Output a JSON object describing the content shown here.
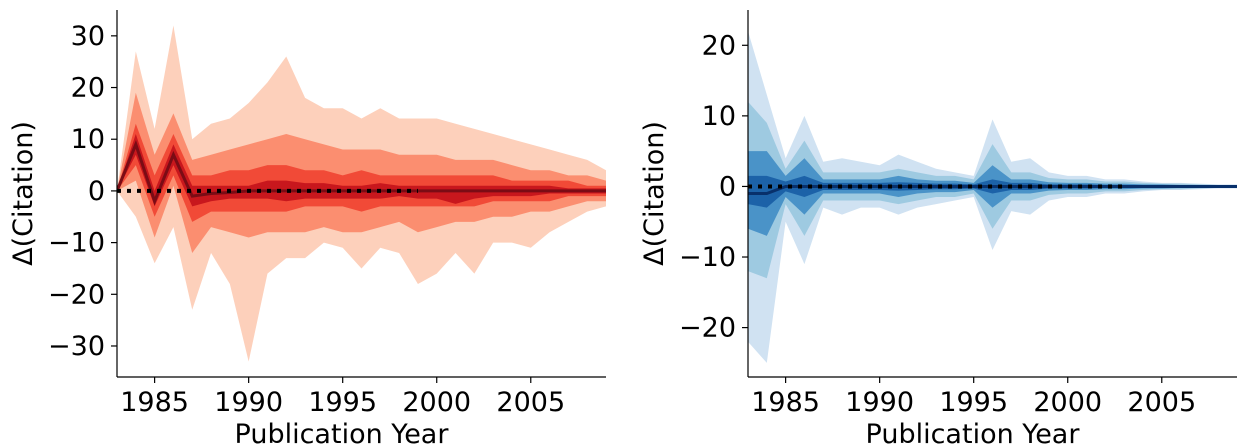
{
  "chart_data": [
    {
      "type": "area",
      "title": "",
      "xlabel": "Publication Year",
      "ylabel": "Δ(Citation)",
      "xlim": [
        1983,
        2009
      ],
      "ylim": [
        -36,
        35
      ],
      "x_ticks": [
        1985,
        1990,
        1995,
        2000,
        2005
      ],
      "y_ticks": [
        30,
        20,
        10,
        0,
        -10,
        -20,
        -30
      ],
      "y_tick_labels": [
        "30",
        "20",
        "10",
        "0",
        "−10",
        "−20",
        "−30"
      ],
      "grid": false,
      "legend": "none",
      "x": [
        1983,
        1984,
        1985,
        1986,
        1987,
        1988,
        1989,
        1990,
        1991,
        1992,
        1993,
        1994,
        1995,
        1996,
        1997,
        1998,
        1999,
        2000,
        2001,
        2002,
        2003,
        2004,
        2005,
        2006,
        2007,
        2008,
        2009
      ],
      "median": [
        0,
        9,
        -2,
        7,
        -1,
        -0.5,
        -0.3,
        0,
        0,
        0,
        0,
        0,
        0,
        0,
        0,
        0,
        0,
        0,
        0,
        0,
        0,
        0,
        0,
        0,
        0,
        0,
        0
      ],
      "bands": [
        {
          "upper": [
            0,
            27,
            12,
            32,
            10,
            13,
            14,
            17,
            21,
            26,
            18,
            16,
            16,
            14,
            16,
            14,
            14,
            14,
            13,
            12,
            11,
            10,
            9,
            8,
            7,
            6,
            4
          ],
          "lower": [
            0,
            -5,
            -14,
            -7,
            -23,
            -12,
            -18,
            -33,
            -16,
            -13,
            -13,
            -10,
            -11,
            -15,
            -11,
            -12,
            -18,
            -16,
            -12,
            -16,
            -10,
            -10,
            -11,
            -8,
            -6,
            -4,
            -3
          ]
        },
        {
          "upper": [
            0,
            19,
            7,
            15,
            6,
            7,
            8,
            9,
            10,
            11,
            10,
            9,
            8,
            8,
            8,
            7,
            7,
            7,
            6,
            6,
            6,
            5,
            4,
            4,
            3,
            3,
            2
          ],
          "lower": [
            0,
            2,
            -9,
            1,
            -12,
            -7,
            -8,
            -9,
            -8,
            -8,
            -8,
            -7,
            -8,
            -8,
            -7,
            -6,
            -8,
            -7,
            -6,
            -6,
            -5,
            -5,
            -4,
            -4,
            -3,
            -2,
            -2
          ]
        },
        {
          "upper": [
            0,
            13,
            3,
            11,
            3,
            3,
            4,
            4,
            5,
            5,
            4,
            4,
            3,
            4,
            3,
            3,
            3,
            3,
            3,
            3,
            3,
            2,
            2,
            2,
            2,
            1,
            1
          ],
          "lower": [
            0,
            5,
            -5,
            3,
            -6,
            -4,
            -4,
            -4,
            -4,
            -4,
            -3,
            -3,
            -3,
            -4,
            -3,
            -3,
            -3,
            -3,
            -3,
            -3,
            -2,
            -2,
            -2,
            -2,
            -1,
            -1,
            -1
          ]
        },
        {
          "upper": [
            0,
            11,
            0,
            9,
            1,
            1,
            1,
            1,
            2,
            2,
            1.5,
            1.5,
            1,
            1,
            1.5,
            1,
            1,
            1,
            1,
            1,
            1,
            1,
            1,
            1,
            0.5,
            0.5,
            0.5
          ],
          "lower": [
            0,
            7,
            -3,
            5,
            -3,
            -2,
            -1.5,
            -1.5,
            -1.5,
            -2,
            -1.5,
            -1.5,
            -1.5,
            -1.5,
            -1.5,
            -1,
            -1.5,
            -1.5,
            -2.5,
            -1.5,
            -1,
            -1,
            -1,
            -0.5,
            -0.5,
            -0.5,
            -0.5
          ]
        }
      ],
      "band_colors": [
        "#fdd0bb",
        "#fb8e70",
        "#f14a37",
        "#c8171d"
      ],
      "median_color": "#7b0c15",
      "reference": {
        "y": 0,
        "x_start": 1983,
        "x_end": 1999,
        "color": "#000000",
        "style": "dotted"
      }
    },
    {
      "type": "area",
      "title": "",
      "xlabel": "Publication Year",
      "ylabel": "Δ(Citation)",
      "xlim": [
        1983,
        2009
      ],
      "ylim": [
        -27,
        25
      ],
      "x_ticks": [
        1985,
        1990,
        1995,
        2000,
        2005
      ],
      "y_ticks": [
        20,
        10,
        0,
        -10,
        -20
      ],
      "y_tick_labels": [
        "20",
        "10",
        "0",
        "−10",
        "−20"
      ],
      "grid": false,
      "legend": "none",
      "x": [
        1983,
        1984,
        1985,
        1986,
        1987,
        1988,
        1989,
        1990,
        1991,
        1992,
        1993,
        1994,
        1995,
        1996,
        1997,
        1998,
        1999,
        2000,
        2001,
        2002,
        2003,
        2004,
        2005,
        2006,
        2007,
        2008,
        2009
      ],
      "median": [
        -1,
        -1,
        0,
        0,
        0,
        0,
        0,
        0,
        0,
        0,
        0,
        0,
        0,
        0,
        0,
        0,
        0,
        0,
        0,
        0,
        0,
        0,
        0,
        0,
        0,
        0,
        0
      ],
      "bands": [
        {
          "upper": [
            22,
            13,
            4,
            10,
            3.5,
            4,
            3.5,
            3,
            4.5,
            3.5,
            2.5,
            2,
            1.5,
            9.5,
            3.5,
            4,
            2,
            1.5,
            1.5,
            1,
            1,
            0.7,
            0.5,
            0.5,
            0.4,
            0.3,
            0.3
          ],
          "lower": [
            -22,
            -25,
            -5,
            -11,
            -3,
            -4,
            -3,
            -3,
            -4,
            -3,
            -2.5,
            -2,
            -1.5,
            -9,
            -3.5,
            -4,
            -2,
            -1.5,
            -1.5,
            -1,
            -1,
            -0.7,
            -0.5,
            -0.5,
            -0.4,
            -0.3,
            -0.3
          ]
        },
        {
          "upper": [
            12,
            9,
            2.5,
            6.5,
            2,
            2,
            2,
            2,
            2.5,
            2,
            1.5,
            1.5,
            1,
            6,
            2,
            2,
            1.2,
            1,
            1,
            0.7,
            0.7,
            0.5,
            0.4,
            0.4,
            0.3,
            0.2,
            0.2
          ],
          "lower": [
            -12,
            -13,
            -2.5,
            -7,
            -2,
            -2,
            -2,
            -2,
            -2.5,
            -2,
            -1.5,
            -1.5,
            -1,
            -6,
            -2,
            -2,
            -1.2,
            -1,
            -1,
            -0.7,
            -0.7,
            -0.5,
            -0.4,
            -0.4,
            -0.3,
            -0.2,
            -0.2
          ]
        },
        {
          "upper": [
            5,
            5,
            1.5,
            4,
            1,
            1,
            1,
            1,
            1.5,
            1,
            0.8,
            0.8,
            0.5,
            3,
            1,
            1,
            0.6,
            0.5,
            0.5,
            0.4,
            0.4,
            0.3,
            0.3,
            0.2,
            0.2,
            0.1,
            0.1
          ],
          "lower": [
            -6,
            -7,
            -1.5,
            -4,
            -1,
            -1,
            -1,
            -1,
            -1.5,
            -1,
            -0.8,
            -0.8,
            -0.5,
            -3,
            -1,
            -1,
            -0.6,
            -0.5,
            -0.5,
            -0.4,
            -0.4,
            -0.3,
            -0.3,
            -0.2,
            -0.2,
            -0.1,
            -0.1
          ]
        },
        {
          "upper": [
            1.5,
            1.5,
            0.7,
            1.5,
            0.5,
            0.5,
            0.5,
            0.5,
            0.6,
            0.5,
            0.4,
            0.4,
            0.3,
            1,
            0.5,
            0.5,
            0.3,
            0.3,
            0.3,
            0.2,
            0.2,
            0.2,
            0.2,
            0.2,
            0.2,
            0.2,
            0.2
          ],
          "lower": [
            -2.5,
            -3,
            -0.7,
            -1.5,
            -0.5,
            -0.5,
            -0.5,
            -0.5,
            -0.6,
            -0.5,
            -0.4,
            -0.4,
            -0.3,
            -1,
            -0.5,
            -0.5,
            -0.3,
            -0.3,
            -0.3,
            -0.2,
            -0.2,
            -0.2,
            -0.2,
            -0.2,
            -0.2,
            -0.2,
            -0.2
          ]
        }
      ],
      "band_colors": [
        "#d0e2f2",
        "#9ecae1",
        "#4a93c8",
        "#1c62a8"
      ],
      "median_color": "#08306b",
      "reference": {
        "y": 0,
        "x_start": 1983,
        "x_end": 2003,
        "color": "#000000",
        "style": "dotted"
      }
    }
  ]
}
